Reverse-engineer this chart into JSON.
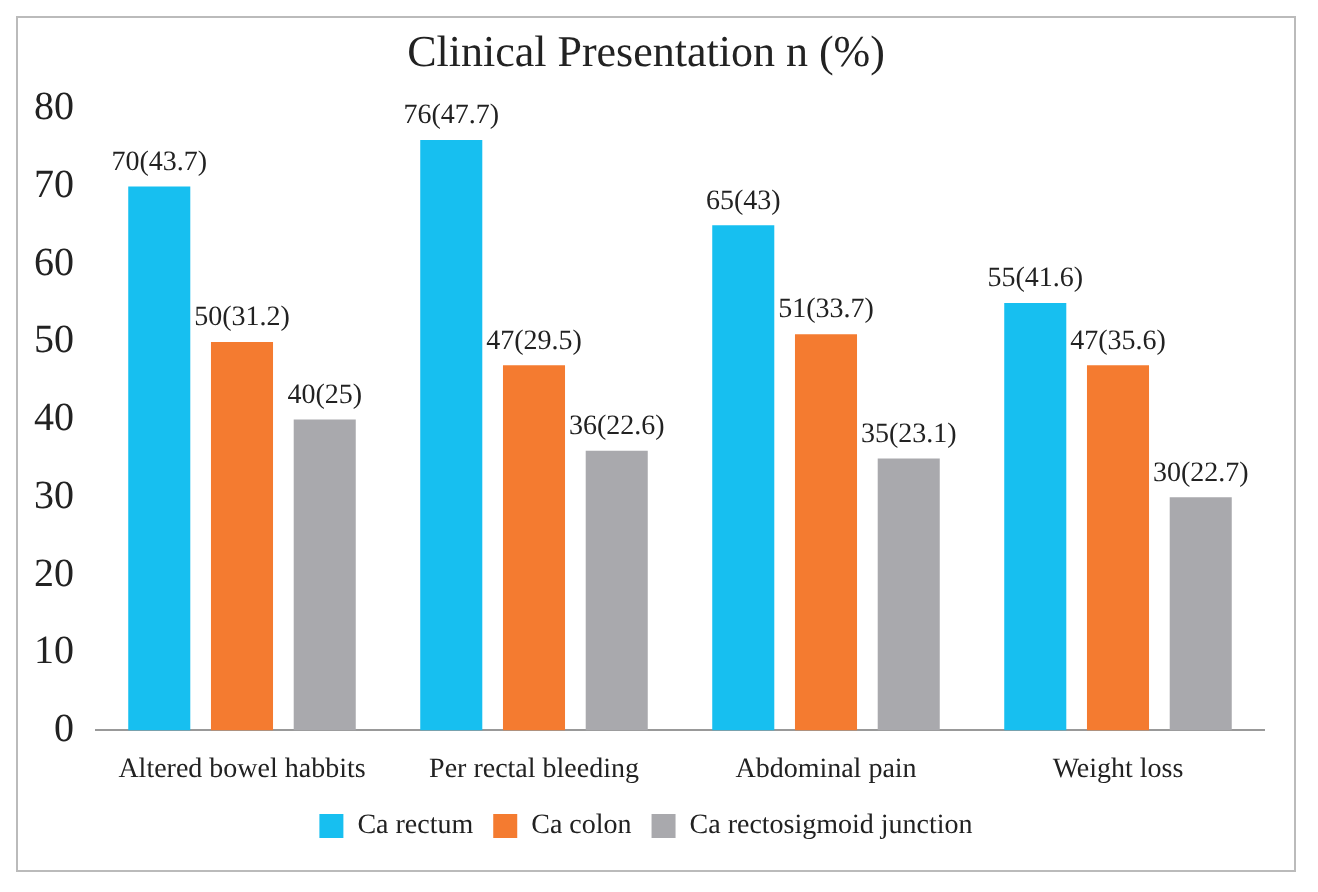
{
  "chart_data": {
    "type": "bar",
    "title": "Clinical Presentation n (%)",
    "categories": [
      "Altered bowel habbits",
      "Per rectal bleeding",
      "Abdominal pain",
      "Weight loss"
    ],
    "series": [
      {
        "name": "Ca rectum",
        "color": "#17bff0",
        "values": [
          70,
          76,
          65,
          55
        ],
        "value_labels": [
          "70(43.7)",
          "76(47.7)",
          "65(43)",
          "55(41.6)"
        ]
      },
      {
        "name": "Ca colon",
        "color": "#f47b30",
        "values": [
          50,
          47,
          51,
          47
        ],
        "value_labels": [
          "50(31.2)",
          "47(29.5)",
          "51(33.7)",
          "47(35.6)"
        ]
      },
      {
        "name": "Ca rectosigmoid junction",
        "color": "#a9a9ad",
        "values": [
          40,
          36,
          35,
          30
        ],
        "value_labels": [
          "40(25)",
          "36(22.6)",
          "35(23.1)",
          "30(22.7)"
        ]
      }
    ],
    "ylim": [
      0,
      80
    ],
    "yticks": [
      0,
      10,
      20,
      30,
      40,
      50,
      60,
      70,
      80
    ],
    "grid": false,
    "legend": "bottom"
  }
}
